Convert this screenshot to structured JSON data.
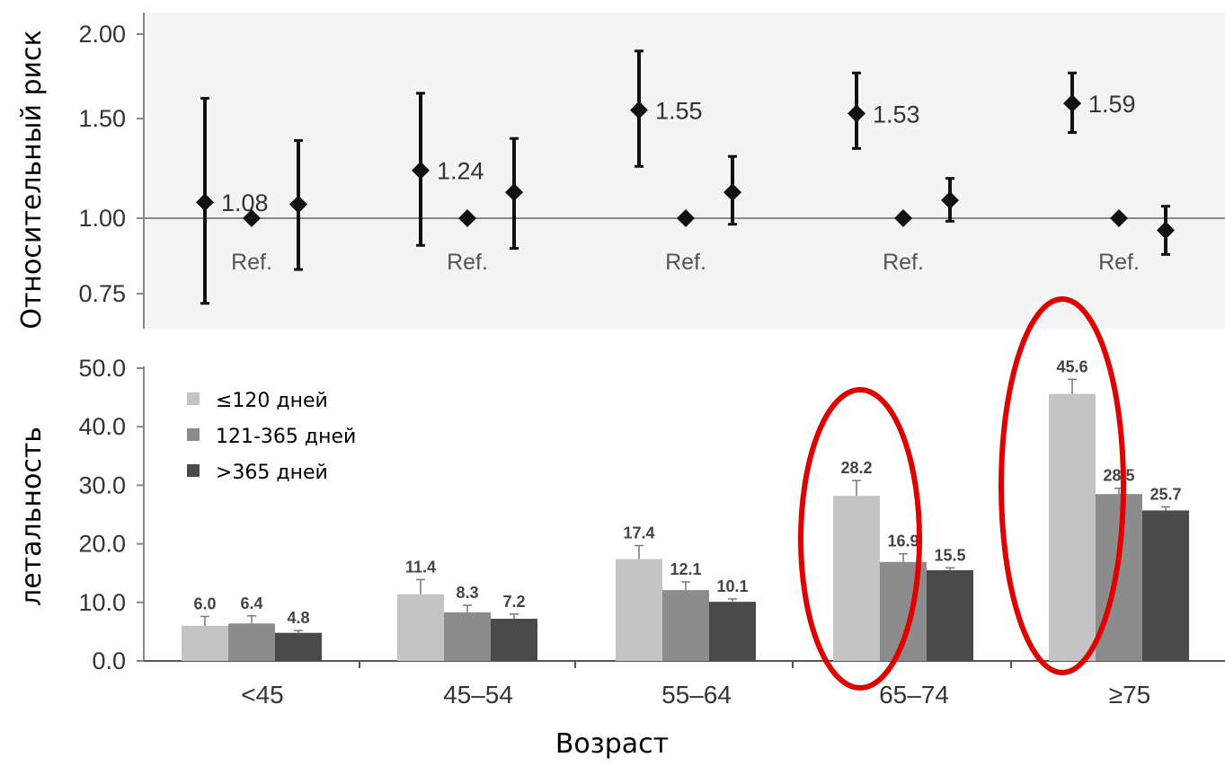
{
  "chart_data": [
    {
      "type": "scatter",
      "ylabel": "Относительный риск",
      "yticks": [
        "2.00",
        "1.50",
        "1.00",
        "0.75"
      ],
      "categories": [
        "<45",
        "45–54",
        "55–64",
        "65–74",
        "≥75"
      ],
      "reference_label": "Ref.",
      "reference_value": 1.0,
      "series": [
        {
          "values": [
            1.08,
            1.24,
            1.55,
            1.53,
            1.59
          ],
          "ci_low": [
            0.72,
            0.91,
            1.26,
            1.35,
            1.43
          ],
          "ci_high": [
            1.62,
            1.65,
            1.9,
            1.77,
            1.77
          ],
          "labels": [
            "1.08",
            "1.24",
            "1.55",
            "1.53",
            "1.59"
          ]
        },
        {
          "values": [
            1.0,
            1.0,
            1.0,
            1.0,
            1.0
          ]
        },
        {
          "values": [
            1.07,
            1.13,
            1.13,
            1.09,
            0.96
          ],
          "ci_low": [
            0.83,
            0.9,
            0.98,
            0.99,
            0.88
          ],
          "ci_high": [
            1.39,
            1.4,
            1.31,
            1.2,
            1.06
          ]
        }
      ]
    },
    {
      "type": "bar",
      "ylabel": "летальность",
      "xlabel": "Возраст",
      "categories": [
        "<45",
        "45–54",
        "55–64",
        "65–74",
        "≥75"
      ],
      "ylim": [
        0,
        50
      ],
      "yticks": [
        "50.0",
        "40.0",
        "30.0",
        "20.0",
        "10.0",
        "0.0"
      ],
      "series": [
        {
          "name": "≤120 дней",
          "color": "#c4c4c4",
          "values": [
            6.0,
            11.4,
            17.4,
            28.2,
            45.6
          ],
          "labels": [
            "6.0",
            "11.4",
            "17.4",
            "28.2",
            "45.6"
          ],
          "err": [
            1.6,
            2.5,
            2.3,
            2.6,
            2.5
          ]
        },
        {
          "name": "121-365 дней",
          "color": "#8c8c8c",
          "values": [
            6.4,
            8.3,
            12.1,
            16.9,
            28.5
          ],
          "labels": [
            "6.4",
            "8.3",
            "12.1",
            "16.9",
            "28.5"
          ],
          "err": [
            1.3,
            1.2,
            1.4,
            1.4,
            1.0
          ]
        },
        {
          "name": ">365 дней",
          "color": "#4a4a4a",
          "values": [
            4.8,
            7.2,
            10.1,
            15.5,
            25.7
          ],
          "labels": [
            "4.8",
            "7.2",
            "10.1",
            "15.5",
            "25.7"
          ],
          "err": [
            0.4,
            0.8,
            0.5,
            0.4,
            0.6
          ]
        }
      ],
      "highlighted_categories": [
        "65–74",
        "≥75"
      ],
      "highlight_color": "#e00000"
    }
  ]
}
